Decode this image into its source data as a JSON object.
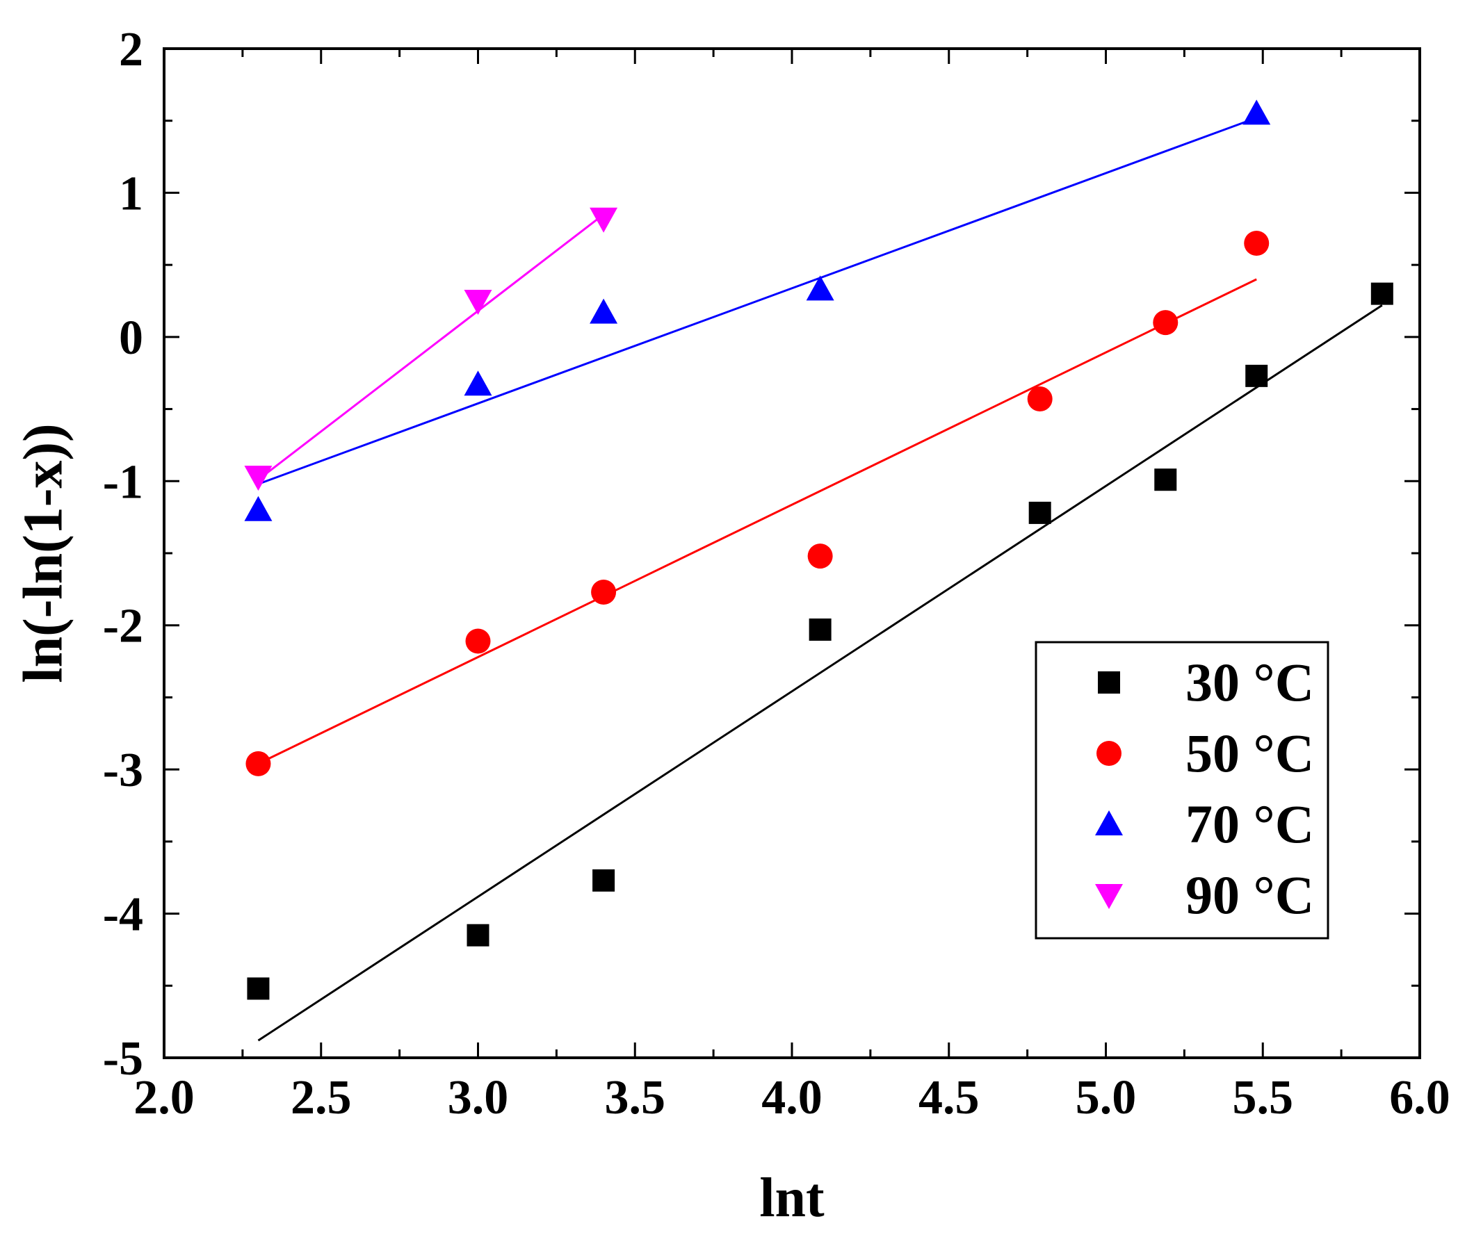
{
  "chart_data": {
    "type": "scatter",
    "title": "",
    "xlabel": "lnt",
    "ylabel": "ln(-ln(1-x))",
    "xlim": [
      2.0,
      6.0
    ],
    "ylim": [
      -5,
      2
    ],
    "xticks": [
      2.0,
      2.5,
      3.0,
      3.5,
      4.0,
      4.5,
      5.0,
      5.5,
      6.0
    ],
    "xtick_labels": [
      "2.0",
      "2.5",
      "3.0",
      "3.5",
      "4.0",
      "4.5",
      "5.0",
      "5.5",
      "6.0"
    ],
    "yticks": [
      -5,
      -4,
      -3,
      -2,
      -1,
      0,
      1,
      2
    ],
    "ytick_labels": [
      "-5",
      "-4",
      "-3",
      "-2",
      "-1",
      "0",
      "1",
      "2"
    ],
    "grid": false,
    "legend_position": "bottom-right",
    "series": [
      {
        "name": "30 °C",
        "color": "#000000",
        "marker": "square",
        "x": [
          2.3,
          3.0,
          3.4,
          4.09,
          4.79,
          5.19,
          5.48,
          5.88
        ],
        "y": [
          -4.52,
          -4.15,
          -3.77,
          -2.03,
          -1.22,
          -0.99,
          -0.27,
          0.3
        ],
        "fit_line": {
          "x": [
            2.3,
            5.88
          ],
          "y": [
            -4.88,
            0.22
          ]
        }
      },
      {
        "name": "50 °C",
        "color": "#ff0000",
        "marker": "circle",
        "x": [
          2.3,
          3.0,
          3.4,
          4.09,
          4.79,
          5.19,
          5.48
        ],
        "y": [
          -2.96,
          -2.11,
          -1.77,
          -1.52,
          -0.43,
          0.1,
          0.65
        ],
        "fit_line": {
          "x": [
            2.3,
            5.48
          ],
          "y": [
            -2.96,
            0.4
          ]
        }
      },
      {
        "name": "70 °C",
        "color": "#0000ff",
        "marker": "triangle-up",
        "x": [
          2.3,
          3.0,
          3.4,
          4.09,
          5.48
        ],
        "y": [
          -1.2,
          -0.33,
          0.17,
          0.33,
          1.55
        ],
        "fit_line": {
          "x": [
            2.3,
            5.48
          ],
          "y": [
            -1.02,
            1.52
          ]
        }
      },
      {
        "name": "90 °C",
        "color": "#ff00ff",
        "marker": "triangle-down",
        "x": [
          2.3,
          3.0,
          3.4
        ],
        "y": [
          -0.97,
          0.25,
          0.82
        ],
        "fit_line": {
          "x": [
            2.3,
            3.4
          ],
          "y": [
            -0.99,
            0.85
          ]
        }
      }
    ]
  }
}
